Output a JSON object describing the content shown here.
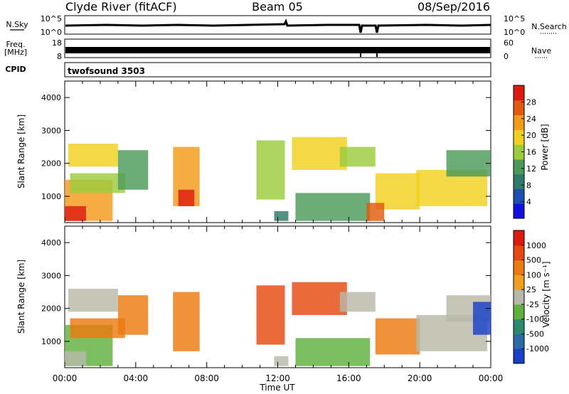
{
  "header": {
    "station": "Clyde River (fitACF)",
    "beam": "Beam 05",
    "date": "08/Sep/2016"
  },
  "top_panels": {
    "nsky_label": "N.Sky",
    "nsky_ticks": [
      "10^5",
      "10^0"
    ],
    "nsearch_label": "N.Search",
    "nsearch_ticks": [
      "10^5",
      "10^0"
    ],
    "freq_label": "Freq.",
    "freq_unit": "[MHz]",
    "freq_ticks": [
      "18",
      "8"
    ],
    "nave_label": "Nave",
    "nave_ticks": [
      "60",
      "0"
    ],
    "cpid_label": "CPID",
    "cpid_value": "twofsound 3503"
  },
  "colors": {
    "power_scale": [
      "#1010e0",
      "#1d4fb0",
      "#2f7a6a",
      "#4a9a5a",
      "#9ccc3c",
      "#f0d020",
      "#f39a18",
      "#e05a10",
      "#dd1a10"
    ],
    "velocity_scale": [
      "#1840c8",
      "#2c6aa8",
      "#2d8a70",
      "#60b040",
      "#b8b8a8",
      "#f0a020",
      "#ec7a10",
      "#e44a10",
      "#dd1a10"
    ]
  },
  "chart_data": [
    {
      "type": "heatmap",
      "name": "power",
      "xlabel": "",
      "ylabel": "Slant Range [km]",
      "xlim": [
        0,
        24
      ],
      "ylim": [
        200,
        4500
      ],
      "yticks": [
        1000,
        2000,
        3000,
        4000
      ],
      "colorbar": {
        "label": "Power [dB]",
        "ticks": [
          "4",
          "8",
          "12",
          "16",
          "20",
          "24",
          "28"
        ],
        "range": [
          0,
          32
        ]
      },
      "patches": [
        {
          "t0": 0.0,
          "t1": 2.7,
          "r0": 250,
          "r1": 1500,
          "level": 6
        },
        {
          "t0": 0.0,
          "t1": 1.2,
          "r0": 250,
          "r1": 700,
          "level": 8
        },
        {
          "t0": 0.3,
          "t1": 3.4,
          "r0": 1100,
          "r1": 1700,
          "level": 4
        },
        {
          "t0": 0.2,
          "t1": 3.0,
          "r0": 1900,
          "r1": 2600,
          "level": 5
        },
        {
          "t0": 3.0,
          "t1": 4.7,
          "r0": 1200,
          "r1": 2400,
          "level": 3
        },
        {
          "t0": 6.1,
          "t1": 7.6,
          "r0": 700,
          "r1": 2500,
          "level": 6
        },
        {
          "t0": 6.4,
          "t1": 7.3,
          "r0": 700,
          "r1": 1200,
          "level": 8
        },
        {
          "t0": 10.8,
          "t1": 12.4,
          "r0": 900,
          "r1": 2700,
          "level": 4
        },
        {
          "t0": 11.8,
          "t1": 12.6,
          "r0": 250,
          "r1": 550,
          "level": 2
        },
        {
          "t0": 12.8,
          "t1": 15.9,
          "r0": 1800,
          "r1": 2800,
          "level": 5
        },
        {
          "t0": 13.0,
          "t1": 17.2,
          "r0": 250,
          "r1": 1100,
          "level": 3
        },
        {
          "t0": 15.5,
          "t1": 17.5,
          "r0": 1900,
          "r1": 2500,
          "level": 4
        },
        {
          "t0": 17.5,
          "t1": 20.0,
          "r0": 600,
          "r1": 1700,
          "level": 5
        },
        {
          "t0": 17.0,
          "t1": 18.0,
          "r0": 250,
          "r1": 800,
          "level": 7
        },
        {
          "t0": 19.8,
          "t1": 23.8,
          "r0": 700,
          "r1": 1800,
          "level": 5
        },
        {
          "t0": 21.5,
          "t1": 24.0,
          "r0": 1600,
          "r1": 2400,
          "level": 3
        }
      ]
    },
    {
      "type": "heatmap",
      "name": "velocity",
      "xlabel": "Time UT",
      "ylabel": "Slant Range [km]",
      "xlim": [
        0,
        24
      ],
      "ylim": [
        200,
        4500
      ],
      "xticks": [
        "00:00",
        "04:00",
        "08:00",
        "12:00",
        "16:00",
        "20:00",
        "00:00"
      ],
      "yticks": [
        1000,
        2000,
        3000,
        4000
      ],
      "colorbar": {
        "label": "Velocity [m s⁻¹]",
        "ticks": [
          "1000",
          "500",
          "100",
          "25",
          "-25",
          "-100",
          "-500",
          "-1000"
        ],
        "range": [
          -1000,
          1000
        ]
      },
      "patches": [
        {
          "t0": 0.0,
          "t1": 2.7,
          "r0": 250,
          "r1": 1500,
          "level": 3
        },
        {
          "t0": 0.0,
          "t1": 1.2,
          "r0": 250,
          "r1": 700,
          "level": 4
        },
        {
          "t0": 0.3,
          "t1": 3.4,
          "r0": 1100,
          "r1": 1700,
          "level": 6
        },
        {
          "t0": 0.2,
          "t1": 3.0,
          "r0": 1900,
          "r1": 2600,
          "level": 4
        },
        {
          "t0": 3.0,
          "t1": 4.7,
          "r0": 1200,
          "r1": 2400,
          "level": 6
        },
        {
          "t0": 6.1,
          "t1": 7.6,
          "r0": 700,
          "r1": 2500,
          "level": 6
        },
        {
          "t0": 10.8,
          "t1": 12.4,
          "r0": 900,
          "r1": 2700,
          "level": 7
        },
        {
          "t0": 11.8,
          "t1": 12.6,
          "r0": 250,
          "r1": 550,
          "level": 4
        },
        {
          "t0": 12.8,
          "t1": 15.9,
          "r0": 1800,
          "r1": 2800,
          "level": 7
        },
        {
          "t0": 13.0,
          "t1": 17.2,
          "r0": 250,
          "r1": 1100,
          "level": 3
        },
        {
          "t0": 15.5,
          "t1": 17.5,
          "r0": 1900,
          "r1": 2500,
          "level": 4
        },
        {
          "t0": 17.5,
          "t1": 20.0,
          "r0": 600,
          "r1": 1700,
          "level": 6
        },
        {
          "t0": 19.8,
          "t1": 23.8,
          "r0": 700,
          "r1": 1800,
          "level": 4
        },
        {
          "t0": 21.5,
          "t1": 24.0,
          "r0": 1600,
          "r1": 2400,
          "level": 4
        },
        {
          "t0": 23.0,
          "t1": 24.0,
          "r0": 1200,
          "r1": 2200,
          "level": 0
        }
      ]
    }
  ]
}
